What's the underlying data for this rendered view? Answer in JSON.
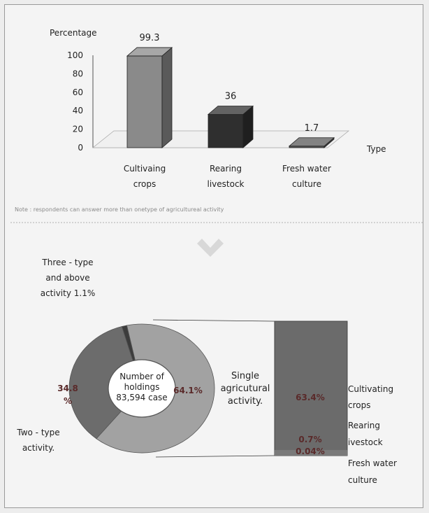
{
  "bar_chart": {
    "ylabel": "Percentage",
    "xlabel": "Type",
    "note": "Note : respondents can answer more than onetype of agricultureal activity"
  },
  "donut": {
    "center_line1": "Number of",
    "center_line2": "holdings",
    "center_line3": "83,594 case",
    "three_type_label_line1": "Three - type",
    "three_type_label_line2": "and above",
    "three_type_label_line3": "activity 1.1%",
    "two_type_label_line1": "Two - type",
    "two_type_label_line2": "activity.",
    "two_type_value_line1": "34.8",
    "two_type_value_line2": "%",
    "single_value": "64.1%",
    "single_label_line1": "Single",
    "single_label_line2": "agricutural",
    "single_label_line3": "activity."
  },
  "breakdown": {
    "items": [
      {
        "value_label": "63.4%",
        "label_line1": "Cultivating",
        "label_line2": "crops"
      },
      {
        "value_label": "0.7%",
        "label_line1": "Rearing",
        "label_line2": "ivestock"
      },
      {
        "value_label": "0.04%",
        "label_line1": "Fresh water",
        "label_line2": "culture"
      }
    ]
  },
  "colors": {
    "bar_crops": "#8a8a8a",
    "bar_livestock": "#2f2f2f",
    "bar_fresh": "#5a5a5a",
    "donut_single": "#a2a2a2",
    "donut_two": "#6c6c6c",
    "donut_three": "#3c3c3c",
    "breakdown_box": "#6b6b6b",
    "arrow": "#d8d8d8"
  },
  "chart_data": [
    {
      "type": "bar",
      "categories": [
        "Cultivaing crops",
        "Rearing livestock",
        "Fresh water culture"
      ],
      "category_lines": [
        [
          "Cultivaing",
          "crops"
        ],
        [
          "Rearing",
          "livestock"
        ],
        [
          "Fresh water",
          "culture"
        ]
      ],
      "values": [
        99.3,
        36,
        1.7
      ],
      "value_labels": [
        "99.3",
        "36",
        "1.7"
      ],
      "yticks": [
        0,
        20,
        40,
        60,
        80,
        100
      ],
      "ylim": [
        0,
        100
      ],
      "xlabel": "Type",
      "ylabel": "Percentage",
      "style": "3d"
    },
    {
      "type": "pie",
      "variant": "donut",
      "labels": [
        "Single agricutural activity.",
        "Two - type activity.",
        "Three - type and above activity"
      ],
      "values": [
        64.1,
        34.8,
        1.1
      ]
    },
    {
      "type": "bar",
      "variant": "stacked-breakdown",
      "labels": [
        "Cultivating crops",
        "Rearing ivestock",
        "Fresh water culture"
      ],
      "values": [
        63.4,
        0.7,
        0.04
      ]
    }
  ]
}
